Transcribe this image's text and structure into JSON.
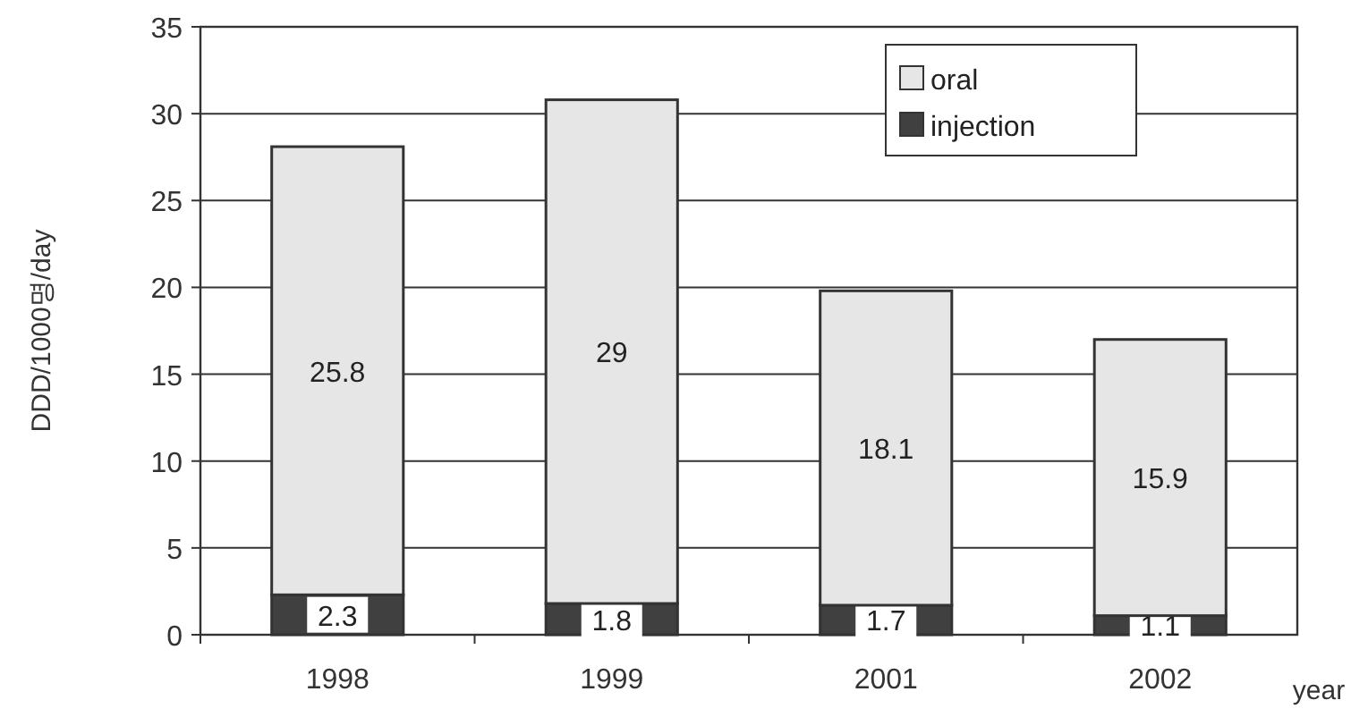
{
  "chart_data": {
    "type": "bar",
    "stacked": true,
    "ylabel": "DDD/1000명/day",
    "xlabel": "year",
    "categories": [
      "1998",
      "1999",
      "2001",
      "2002"
    ],
    "series": [
      {
        "name": "injection",
        "color": "#404040",
        "values": [
          2.3,
          1.8,
          1.7,
          1.1
        ]
      },
      {
        "name": "oral",
        "color": "#e6e6e6",
        "values": [
          25.8,
          29,
          18.1,
          15.9
        ]
      }
    ],
    "ylim": [
      0,
      35
    ],
    "yticks": [
      0,
      5,
      10,
      15,
      20,
      25,
      30,
      35
    ],
    "grid": "y",
    "legend": "top right",
    "data_labels": true
  }
}
